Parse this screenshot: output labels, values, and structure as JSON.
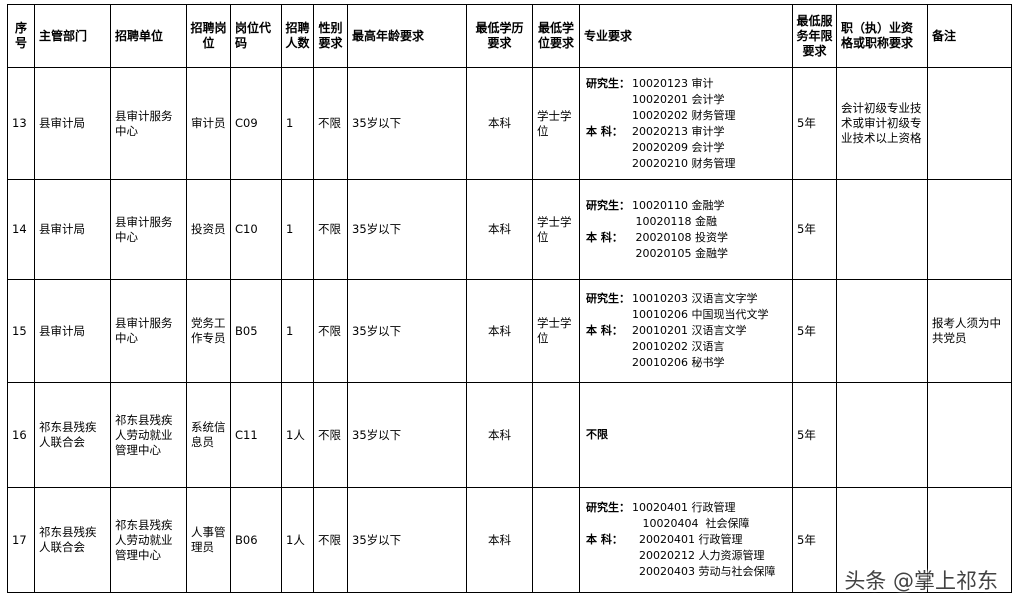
{
  "headers": [
    "序号",
    "主管部门",
    "招聘单位",
    "招聘岗位",
    "岗位代码",
    "招聘人数",
    "性别要求",
    "最高年龄要求",
    "最低学历要求",
    "最低学位要求",
    "专业要求",
    "最低服务年限要求",
    "职（执）业资格或职称要求",
    "备注"
  ],
  "rows": [
    {
      "no": "13",
      "dept": "县审计局",
      "unit": "县审计服务中心",
      "post": "审计员",
      "code": "C09",
      "count": "1",
      "gender": "不限",
      "age": "35岁以下",
      "edu": "本科",
      "degree": "学士学位",
      "spec": [
        {
          "label": "研究生：",
          "value": "10020123 审计"
        },
        {
          "label": "",
          "value": "10020201 会计学"
        },
        {
          "label": "",
          "value": "10020202 财务管理"
        },
        {
          "label": "本  科：",
          "value": "20020213 审计学"
        },
        {
          "label": "",
          "value": "20020209 会计学"
        },
        {
          "label": "",
          "value": "20020210 财务管理"
        }
      ],
      "service": "5年",
      "qual": "会计初级专业技术或审计初级专业技术以上资格",
      "note": ""
    },
    {
      "no": "14",
      "dept": "县审计局",
      "unit": "县审计服务中心",
      "post": "投资员",
      "code": "C10",
      "count": "1",
      "gender": "不限",
      "age": "35岁以下",
      "edu": "本科",
      "degree": "学士学位",
      "spec": [
        {
          "label": "研究生：",
          "value": "10020110 金融学"
        },
        {
          "label": "",
          "value": " 10020118 金融"
        },
        {
          "label": "本 科：",
          "value": " 20020108 投资学"
        },
        {
          "label": "",
          "value": " 20020105 金融学"
        }
      ],
      "service": "5年",
      "qual": "",
      "note": ""
    },
    {
      "no": "15",
      "dept": "县审计局",
      "unit": "县审计服务中心",
      "post": "党务工作专员",
      "code": "B05",
      "count": "1",
      "gender": "不限",
      "age": "35岁以下",
      "edu": "本科",
      "degree": "学士学位",
      "spec": [
        {
          "label": "研究生：",
          "value": "10010203 汉语言文字学"
        },
        {
          "label": "",
          "value": "10010206 中国现当代文学"
        },
        {
          "label": "本 科：",
          "value": "20010201 汉语言文学"
        },
        {
          "label": "",
          "value": "20010202 汉语言"
        },
        {
          "label": "",
          "value": "20010206 秘书学"
        }
      ],
      "service": "5年",
      "qual": "",
      "note": "报考人须为中共党员"
    },
    {
      "no": "16",
      "dept": "祁东县残疾人联合会",
      "unit": "祁东县残疾人劳动就业管理中心",
      "post": "系统信息员",
      "code": "C11",
      "count": "1人",
      "gender": "不限",
      "age": "35岁以下",
      "edu": "本科",
      "degree": "",
      "spec": [
        {
          "label": "不限",
          "value": ""
        }
      ],
      "service": "5年",
      "qual": "",
      "note": ""
    },
    {
      "no": "17",
      "dept": "祁东县残疾人联合会",
      "unit": "祁东县残疾人劳动就业管理中心",
      "post": "人事管理员",
      "code": "B06",
      "count": "1人",
      "gender": "不限",
      "age": "35岁以下",
      "edu": "本科",
      "degree": "",
      "spec": [
        {
          "label": "研究生：",
          "value": "10020401 行政管理"
        },
        {
          "label": "",
          "value": "   10020404  社会保障"
        },
        {
          "label": "本  科：",
          "value": "  20020401 行政管理"
        },
        {
          "label": "",
          "value": "  20020212 人力资源管理"
        },
        {
          "label": "",
          "value": "  20020403 劳动与社会保障"
        }
      ],
      "service": "5年",
      "qual": "",
      "note": ""
    }
  ],
  "watermark": "头条 @掌上祁东"
}
